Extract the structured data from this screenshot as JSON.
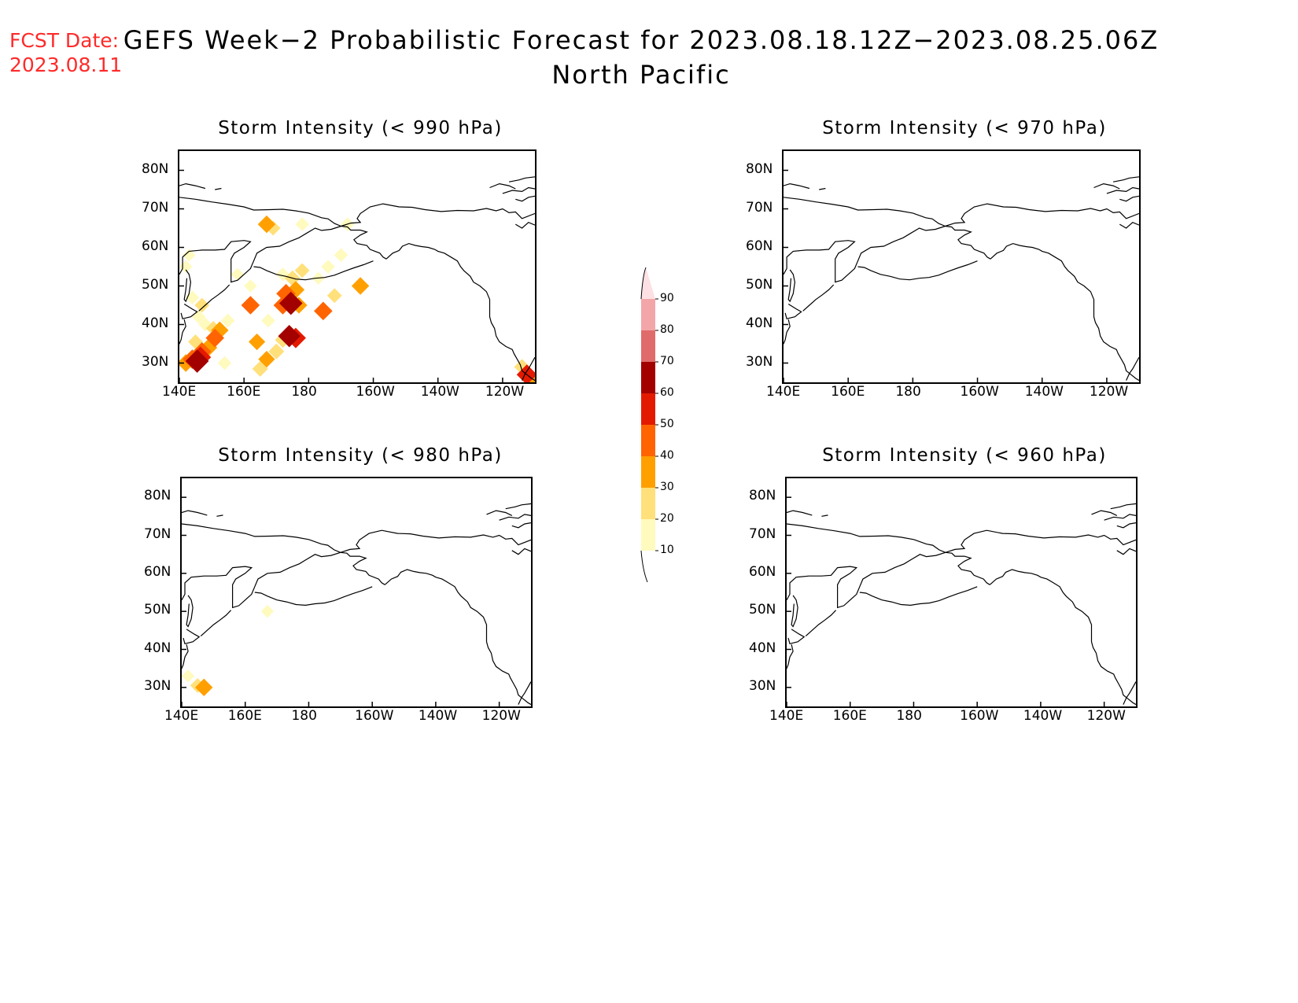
{
  "forecast_date": {
    "label": "FCST Date:",
    "value": "2023.08.11"
  },
  "title": {
    "line1": "GEFS Week−2 Probabilistic Forecast for 2023.08.18.12Z−2023.08.25.06Z",
    "line2": "North Pacific"
  },
  "panels": [
    {
      "id": "p990",
      "title": "Storm Intensity (< 990 hPa)"
    },
    {
      "id": "p970",
      "title": "Storm Intensity (< 970 hPa)"
    },
    {
      "id": "p980",
      "title": "Storm Intensity (< 980 hPa)"
    },
    {
      "id": "p960",
      "title": "Storm Intensity (< 960 hPa)"
    }
  ],
  "axes": {
    "lat_ticks": [
      "80N",
      "70N",
      "60N",
      "50N",
      "40N",
      "30N"
    ],
    "lon_ticks": [
      "140E",
      "160E",
      "180",
      "160W",
      "140W",
      "120W"
    ],
    "lat_range": [
      25,
      85
    ],
    "lon_range": [
      140,
      250
    ]
  },
  "colorbar": {
    "labels": [
      "90",
      "80",
      "70",
      "60",
      "50",
      "40",
      "30",
      "20",
      "10"
    ],
    "colors": [
      "#fde0e3",
      "#f3a6a8",
      "#e06b6b",
      "#a30000",
      "#e41a00",
      "#ff6400",
      "#ffa000",
      "#ffe07a",
      "#fffabe"
    ]
  },
  "chart_data": {
    "type": "heatmap",
    "units": "percent probability",
    "p990": [
      {
        "lon": 145.5,
        "lat": 30.5,
        "p": 65
      },
      {
        "lon": 146.5,
        "lat": 31.5,
        "p": 55
      },
      {
        "lon": 144,
        "lat": 31,
        "p": 45
      },
      {
        "lon": 142,
        "lat": 30,
        "p": 35
      },
      {
        "lon": 147,
        "lat": 33,
        "p": 40
      },
      {
        "lon": 149,
        "lat": 34,
        "p": 35
      },
      {
        "lon": 151,
        "lat": 36.5,
        "p": 40
      },
      {
        "lon": 152.5,
        "lat": 38.5,
        "p": 35
      },
      {
        "lon": 150.5,
        "lat": 39,
        "p": 20
      },
      {
        "lon": 148,
        "lat": 40,
        "p": 15
      },
      {
        "lon": 146,
        "lat": 42,
        "p": 15
      },
      {
        "lon": 147,
        "lat": 45,
        "p": 20
      },
      {
        "lon": 144,
        "lat": 47,
        "p": 15
      },
      {
        "lon": 142,
        "lat": 55,
        "p": 10
      },
      {
        "lon": 143,
        "lat": 58,
        "p": 10
      },
      {
        "lon": 162,
        "lat": 45,
        "p": 40
      },
      {
        "lon": 164,
        "lat": 35.5,
        "p": 30
      },
      {
        "lon": 167,
        "lat": 31,
        "p": 30
      },
      {
        "lon": 165,
        "lat": 28.5,
        "p": 25
      },
      {
        "lon": 170,
        "lat": 33,
        "p": 25
      },
      {
        "lon": 154,
        "lat": 30,
        "p": 15
      },
      {
        "lon": 167.5,
        "lat": 41,
        "p": 15
      },
      {
        "lon": 172,
        "lat": 45,
        "p": 40
      },
      {
        "lon": 174.5,
        "lat": 45.5,
        "p": 65
      },
      {
        "lon": 173,
        "lat": 48,
        "p": 45
      },
      {
        "lon": 176,
        "lat": 49,
        "p": 35
      },
      {
        "lon": 177,
        "lat": 45,
        "p": 30
      },
      {
        "lon": 175,
        "lat": 52,
        "p": 25
      },
      {
        "lon": 178,
        "lat": 54,
        "p": 20
      },
      {
        "lon": 172,
        "lat": 53,
        "p": 15
      },
      {
        "lon": 174,
        "lat": 37,
        "p": 60
      },
      {
        "lon": 176,
        "lat": 36.5,
        "p": 50
      },
      {
        "lon": 172,
        "lat": 36,
        "p": 25
      },
      {
        "lon": 184.5,
        "lat": 43.5,
        "p": 40
      },
      {
        "lon": 188,
        "lat": 47.5,
        "p": 20
      },
      {
        "lon": 190,
        "lat": 58,
        "p": 15
      },
      {
        "lon": 186,
        "lat": 55,
        "p": 15
      },
      {
        "lon": 183,
        "lat": 52,
        "p": 10
      },
      {
        "lon": 196,
        "lat": 50,
        "p": 35
      },
      {
        "lon": 167,
        "lat": 66,
        "p": 35
      },
      {
        "lon": 169,
        "lat": 65,
        "p": 20
      },
      {
        "lon": 178,
        "lat": 66,
        "p": 15
      },
      {
        "lon": 192,
        "lat": 66,
        "p": 15
      },
      {
        "lon": 162,
        "lat": 50,
        "p": 10
      },
      {
        "lon": 158,
        "lat": 53,
        "p": 10
      },
      {
        "lon": 145,
        "lat": 35.5,
        "p": 20
      },
      {
        "lon": 155,
        "lat": 41,
        "p": 15
      },
      {
        "lon": 247.5,
        "lat": 27,
        "p": 50
      },
      {
        "lon": 246,
        "lat": 29,
        "p": 25
      },
      {
        "lon": 248.5,
        "lat": 26,
        "p": 35
      }
    ],
    "p970": [],
    "p980": [
      {
        "lon": 147,
        "lat": 30,
        "p": 35
      },
      {
        "lon": 145,
        "lat": 30.5,
        "p": 20
      },
      {
        "lon": 142,
        "lat": 33,
        "p": 10
      },
      {
        "lon": 167,
        "lat": 50,
        "p": 10
      }
    ],
    "p960": []
  }
}
